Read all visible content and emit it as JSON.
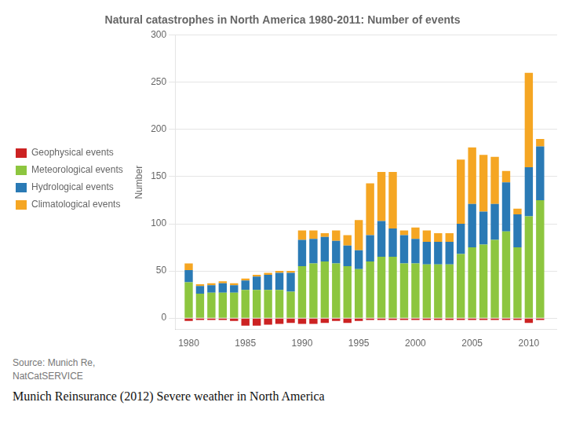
{
  "chart_data": {
    "type": "bar",
    "title": "Natural catastrophes in North America 1980-2011: Number of events",
    "x": [
      1980,
      1981,
      1982,
      1983,
      1984,
      1985,
      1986,
      1987,
      1988,
      1989,
      1990,
      1991,
      1992,
      1993,
      1994,
      1995,
      1996,
      1997,
      1998,
      1999,
      2000,
      2001,
      2002,
      2003,
      2004,
      2005,
      2006,
      2007,
      2008,
      2009,
      2010,
      2011
    ],
    "series": [
      {
        "name": "Geophysical events",
        "color": "#cc2222",
        "values": [
          -3,
          -2,
          -2,
          -2,
          -3,
          -8,
          -8,
          -7,
          -6,
          -5,
          -6,
          -6,
          -5,
          -3,
          -5,
          -3,
          -2,
          -2,
          -2,
          -2,
          -2,
          -2,
          -2,
          -2,
          -2,
          -2,
          -2,
          -2,
          -2,
          -2,
          -5,
          -2
        ]
      },
      {
        "name": "Meteorological events",
        "color": "#8dc63f",
        "values": [
          38,
          26,
          27,
          27,
          27,
          30,
          30,
          30,
          30,
          28,
          55,
          58,
          60,
          58,
          55,
          52,
          60,
          65,
          65,
          58,
          58,
          57,
          57,
          57,
          68,
          75,
          78,
          83,
          92,
          75,
          108,
          125
        ]
      },
      {
        "name": "Hydrological events",
        "color": "#2a7ab5",
        "values": [
          13,
          8,
          8,
          10,
          8,
          10,
          14,
          16,
          18,
          20,
          28,
          26,
          26,
          24,
          22,
          20,
          28,
          38,
          30,
          30,
          26,
          24,
          24,
          24,
          32,
          46,
          35,
          38,
          52,
          35,
          52,
          57
        ]
      },
      {
        "name": "Climatological events",
        "color": "#f5a623",
        "values": [
          7,
          2,
          2,
          2,
          2,
          2,
          2,
          2,
          2,
          2,
          10,
          9,
          4,
          11,
          11,
          32,
          55,
          52,
          60,
          5,
          12,
          12,
          9,
          9,
          68,
          60,
          60,
          50,
          12,
          6,
          100,
          8
        ]
      }
    ],
    "xlim": [
      1978.8,
      2012.5
    ],
    "xticks": [
      1980,
      1985,
      1990,
      1995,
      2000,
      2005,
      2010
    ],
    "ylim": [
      -12,
      300
    ],
    "yticks": [
      0,
      50,
      100,
      150,
      200,
      250,
      300
    ],
    "ylabel": "Number",
    "stacked": true,
    "grid": true,
    "legend": "left",
    "annotations": [
      "Source: Munich Re,\nNatCatSERVICE",
      "Munich Reinsurance (2012) Severe weather in North America"
    ]
  }
}
